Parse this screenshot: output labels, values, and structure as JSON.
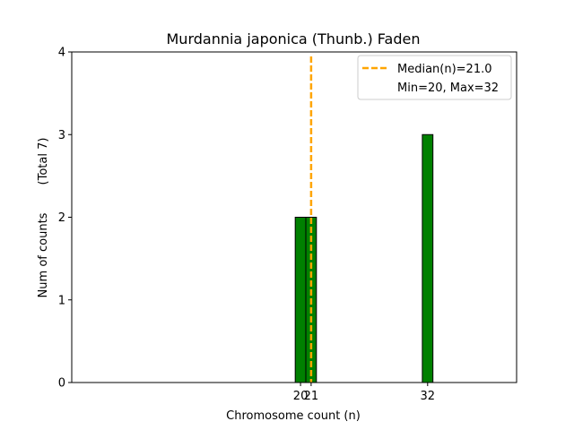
{
  "chart_data": {
    "type": "bar",
    "title": "Murdannia japonica (Thunb.) Faden",
    "xlabel": "Chromosome count (n)",
    "ylabel": "Num of counts",
    "ylabel_total": "(Total 7)",
    "xlim": [
      -1.6,
      40.4
    ],
    "ylim": [
      0,
      4
    ],
    "yticks": [
      0,
      1,
      2,
      3,
      4
    ],
    "xticks": [
      20,
      21,
      32
    ],
    "bars": [
      {
        "x": 20,
        "value": 2
      },
      {
        "x": 21,
        "value": 2
      },
      {
        "x": 32,
        "value": 3
      }
    ],
    "bar_width": 1,
    "bar_color": "#008000",
    "median": 21.0,
    "median_color": "#FFA500",
    "legend": {
      "placement": "upper right",
      "median_label": "Median(n)=21.0",
      "range_label": "Min=20, Max=32"
    }
  }
}
